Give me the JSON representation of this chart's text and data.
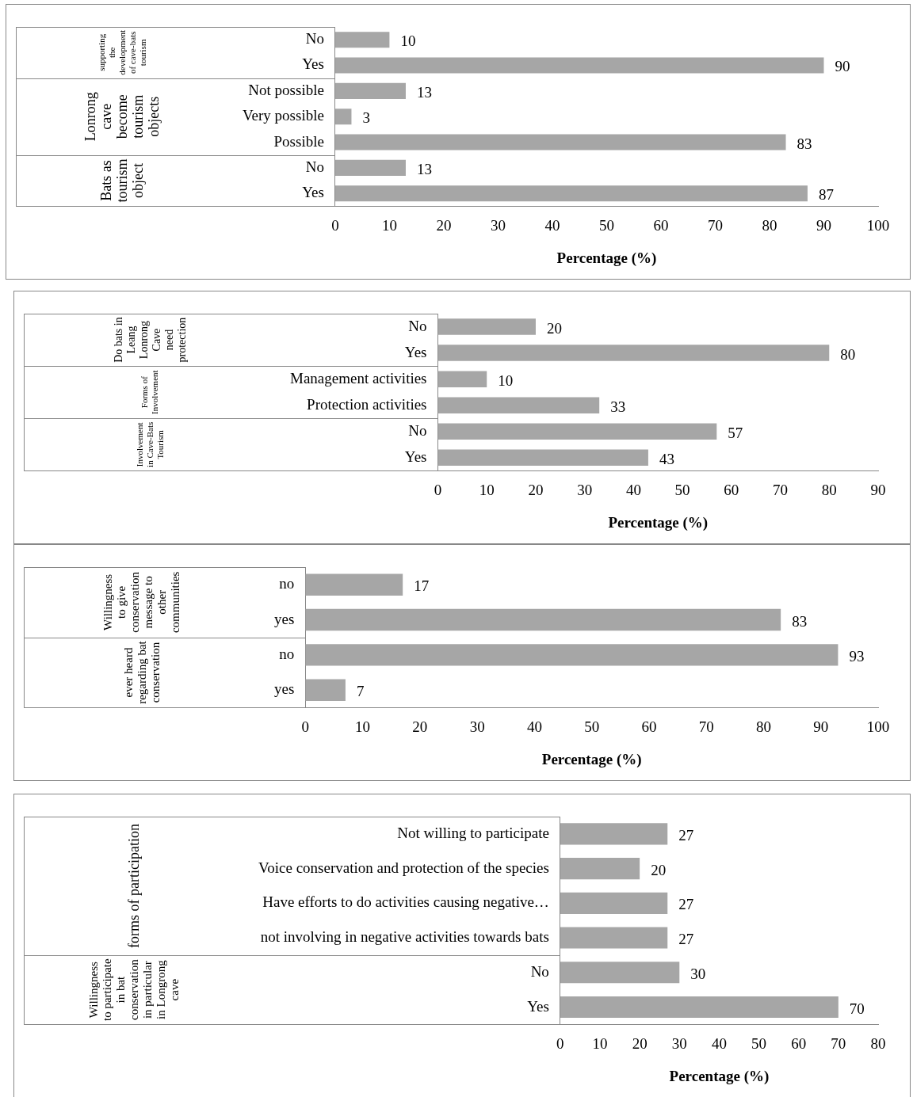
{
  "chart_data": [
    {
      "type": "bar",
      "orientation": "horizontal",
      "categories": [
        "No",
        "Yes",
        "Not possible",
        "Very possible",
        "Possible",
        "No",
        "Yes"
      ],
      "series": [
        {
          "color": "#a6a6a6",
          "values": [
            10,
            90,
            null,
            null,
            null,
            null,
            null
          ]
        },
        {
          "color": "#a6a6a6",
          "values": [
            null,
            null,
            13,
            3,
            83,
            null,
            null
          ]
        },
        {
          "color": "#a6a6a6",
          "values": [
            null,
            null,
            null,
            null,
            null,
            13,
            87
          ]
        }
      ],
      "xlim": [
        0,
        100
      ],
      "xticks": [
        0,
        10,
        20,
        30,
        40,
        50,
        60,
        70,
        80,
        90,
        100
      ],
      "xlabel": "Percentage (%)",
      "data_labels": true,
      "legend": false,
      "grid": false,
      "annotations": [
        "supporting the development of cave-bats tourism",
        "Lonrong cave become tourism objects",
        "Bats as tourism object"
      ]
    },
    {
      "type": "bar",
      "orientation": "horizontal",
      "categories": [
        "No",
        "Yes",
        "Management activities",
        "Protection activities",
        "No",
        "Yes"
      ],
      "series": [
        {
          "color": "#a6a6a6",
          "values": [
            20,
            80,
            null,
            null,
            null,
            null
          ]
        },
        {
          "color": "#a6a6a6",
          "values": [
            null,
            null,
            10,
            33,
            null,
            null
          ]
        },
        {
          "color": "#a6a6a6",
          "values": [
            null,
            null,
            null,
            null,
            57,
            43
          ]
        }
      ],
      "xlim": [
        0,
        90
      ],
      "xticks": [
        0,
        10,
        20,
        30,
        40,
        50,
        60,
        70,
        80,
        90
      ],
      "xlabel": "Percentage (%)",
      "data_labels": true,
      "legend": false,
      "grid": false,
      "annotations": [
        "Do bats in Leang Lonrong Cave need protection",
        "Forms of Involvement",
        "Involvement in Cave-Bats Tourism"
      ]
    },
    {
      "type": "bar",
      "orientation": "horizontal",
      "categories": [
        "no",
        "yes",
        "no",
        "yes"
      ],
      "series": [
        {
          "color": "#a6a6a6",
          "values": [
            17,
            83,
            null,
            null
          ]
        },
        {
          "color": "#a6a6a6",
          "values": [
            null,
            null,
            93,
            7
          ]
        }
      ],
      "xlim": [
        0,
        100
      ],
      "xticks": [
        0,
        10,
        20,
        30,
        40,
        50,
        60,
        70,
        80,
        90,
        100
      ],
      "xlabel": "Percentage (%)",
      "data_labels": true,
      "legend": false,
      "grid": false,
      "annotations": [
        "Willingness to give conservation message to other communities",
        "ever heard regarding bat conservation"
      ]
    },
    {
      "type": "bar",
      "orientation": "horizontal",
      "categories": [
        "Not willing to participate",
        "Voice conservation and protection of the species",
        "Have efforts to do activities causing negative…",
        "not involving in negative activities towards bats",
        "No",
        "Yes"
      ],
      "series": [
        {
          "color": "#a6a6a6",
          "values": [
            27,
            20,
            27,
            27,
            null,
            null
          ]
        },
        {
          "color": "#a6a6a6",
          "values": [
            null,
            null,
            null,
            null,
            30,
            70
          ]
        }
      ],
      "xlim": [
        0,
        80
      ],
      "xticks": [
        0,
        10,
        20,
        30,
        40,
        50,
        60,
        70,
        80
      ],
      "xlabel": "Percentage (%)",
      "data_labels": true,
      "legend": false,
      "grid": false,
      "annotations": [
        "forms of participation",
        "Willingness to participate in bat conservation in particular in Longrong cave"
      ]
    }
  ]
}
